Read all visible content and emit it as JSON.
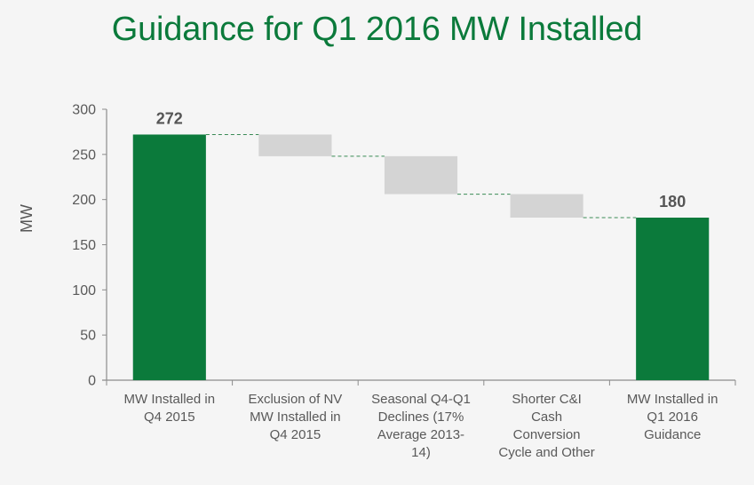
{
  "chart_data": {
    "type": "bar",
    "subtype": "waterfall",
    "title": "Guidance for Q1 2016 MW Installed",
    "xlabel": "",
    "ylabel": "MW",
    "ylim": [
      0,
      300
    ],
    "yticks": [
      0,
      50,
      100,
      150,
      200,
      250,
      300
    ],
    "grid": false,
    "categories": [
      "MW Installed in Q4 2015",
      "Exclusion of NV MW Installed in Q4 2015",
      "Seasonal Q4-Q1 Declines (17% Average 2013-14)",
      "Shorter C&I Cash Conversion Cycle and Other",
      "MW Installed in Q1 2016 Guidance"
    ],
    "category_lines": [
      [
        "MW Installed in",
        "Q4 2015"
      ],
      [
        "Exclusion of NV",
        "MW Installed in",
        "Q4 2015"
      ],
      [
        "Seasonal Q4-Q1",
        "Declines (17%",
        "Average 2013-",
        "14)"
      ],
      [
        "Shorter C&I",
        "Cash",
        "Conversion",
        "Cycle and Other"
      ],
      [
        "MW Installed in",
        "Q1 2016",
        "Guidance"
      ]
    ],
    "bars": [
      {
        "kind": "total",
        "start": 0,
        "end": 272,
        "label": "272"
      },
      {
        "kind": "decrease",
        "start": 272,
        "end": 248,
        "label": ""
      },
      {
        "kind": "decrease",
        "start": 248,
        "end": 206,
        "label": ""
      },
      {
        "kind": "decrease",
        "start": 206,
        "end": 180,
        "label": ""
      },
      {
        "kind": "total",
        "start": 0,
        "end": 180,
        "label": "180"
      }
    ],
    "colors": {
      "total": "#0b7a3b",
      "decrease": "#d4d4d4",
      "connector": "#3a8a55",
      "axis": "#8c8c8c",
      "title": "#0b7a3b"
    }
  }
}
